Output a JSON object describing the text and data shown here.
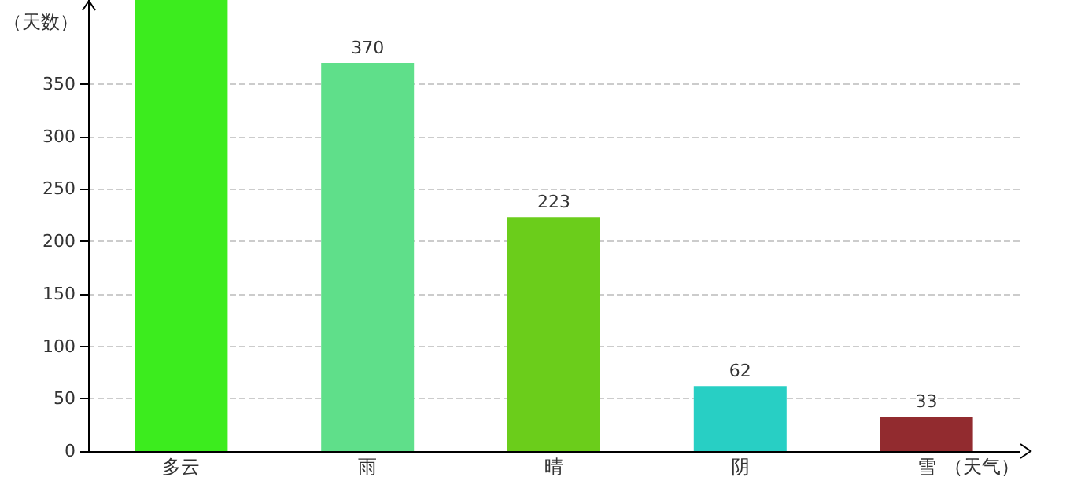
{
  "chart_data": {
    "type": "bar",
    "xlabel": "（天气）",
    "ylabel": "（天数）",
    "categories": [
      "多云",
      "雨",
      "晴",
      "阴",
      "雪"
    ],
    "values": [
      430,
      370,
      223,
      62,
      33
    ],
    "colors": [
      "#3cec1e",
      "#5fdf8a",
      "#6bcd1b",
      "#28cfc4",
      "#922b2f"
    ],
    "value_labels": [
      null,
      "370",
      "223",
      "62",
      "33"
    ],
    "ylim": [
      0,
      430
    ],
    "yticks": [
      0,
      50,
      100,
      150,
      200,
      250,
      300,
      350
    ],
    "grid": "y"
  }
}
